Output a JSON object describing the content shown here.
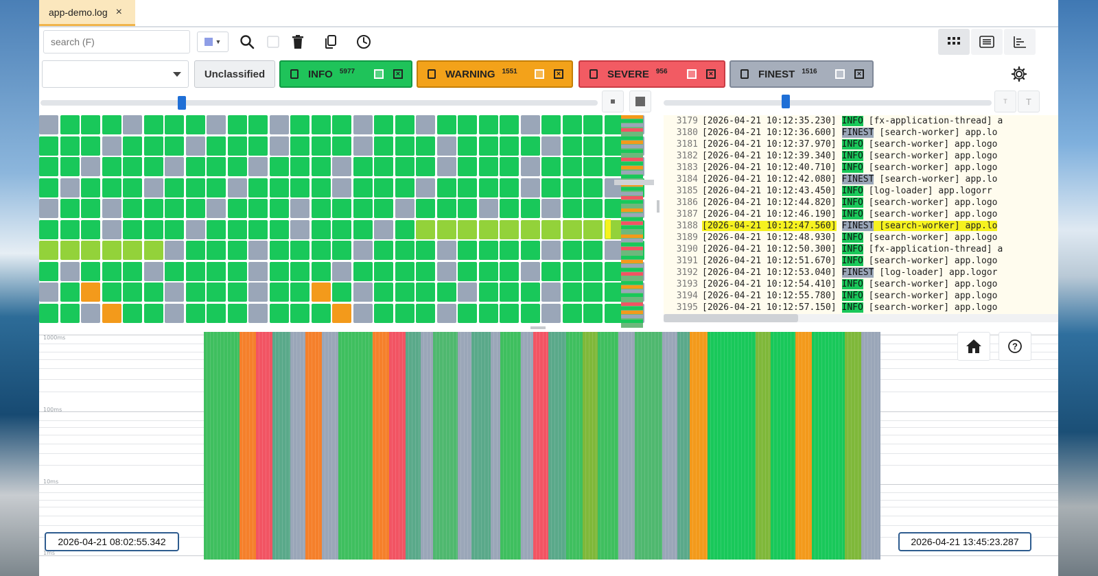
{
  "tab": {
    "title": "app-demo.log",
    "close": "×"
  },
  "toolbar": {
    "search_placeholder": "search (F)",
    "icons": [
      "search-icon",
      "square-icon",
      "trash-icon",
      "copy-icon",
      "clock-icon",
      "grid-view-icon",
      "list-view-icon",
      "chart-view-icon"
    ]
  },
  "filters": {
    "unclassified_label": "Unclassified",
    "chips": [
      {
        "label": "INFO",
        "count": "5977",
        "color": "#1fc35a",
        "border": "#119a45"
      },
      {
        "label": "WARNING",
        "count": "1551",
        "color": "#f3a21a",
        "border": "#c47f08"
      },
      {
        "label": "SEVERE",
        "count": "956",
        "color": "#f25b63",
        "border": "#c93b44"
      },
      {
        "label": "FINEST",
        "count": "1516",
        "color": "#a6aebb",
        "border": "#7f8898"
      }
    ]
  },
  "colors": {
    "info": "#19c85a",
    "finest": "#9aa6b8",
    "warning": "#f39a1b",
    "severe": "#f25463",
    "highlight": "#f6f21f",
    "accent": "#1f6fd6"
  },
  "log": {
    "lines": [
      {
        "num": "3179",
        "ts": "[2026-04-21 10:12:35.230]",
        "level": "INFO",
        "rest": " [fx-application-thread] a"
      },
      {
        "num": "3180",
        "ts": "[2026-04-21 10:12:36.600]",
        "level": "FINEST",
        "rest": " [search-worker] app.lo"
      },
      {
        "num": "3181",
        "ts": "[2026-04-21 10:12:37.970]",
        "level": "INFO",
        "rest": " [search-worker] app.logo"
      },
      {
        "num": "3182",
        "ts": "[2026-04-21 10:12:39.340]",
        "level": "INFO",
        "rest": " [search-worker] app.logo"
      },
      {
        "num": "3183",
        "ts": "[2026-04-21 10:12:40.710]",
        "level": "INFO",
        "rest": " [search-worker] app.logo"
      },
      {
        "num": "3184",
        "ts": "[2026-04-21 10:12:42.080]",
        "level": "FINEST",
        "rest": " [search-worker] app.lo"
      },
      {
        "num": "3185",
        "ts": "[2026-04-21 10:12:43.450]",
        "level": "INFO",
        "rest": " [log-loader] app.logorr"
      },
      {
        "num": "3186",
        "ts": "[2026-04-21 10:12:44.820]",
        "level": "INFO",
        "rest": " [search-worker] app.logo"
      },
      {
        "num": "3187",
        "ts": "[2026-04-21 10:12:46.190]",
        "level": "INFO",
        "rest": " [search-worker] app.logo"
      },
      {
        "num": "3188",
        "ts": "[2026-04-21 10:12:47.560]",
        "level": "FINEST",
        "rest": " [search-worker] app.lo",
        "highlight": true
      },
      {
        "num": "3189",
        "ts": "[2026-04-21 10:12:48.930]",
        "level": "INFO",
        "rest": " [search-worker] app.logo"
      },
      {
        "num": "3190",
        "ts": "[2026-04-21 10:12:50.300]",
        "level": "INFO",
        "rest": " [fx-application-thread] a"
      },
      {
        "num": "3191",
        "ts": "[2026-04-21 10:12:51.670]",
        "level": "INFO",
        "rest": " [search-worker] app.logo"
      },
      {
        "num": "3192",
        "ts": "[2026-04-21 10:12:53.040]",
        "level": "FINEST",
        "rest": " [log-loader] app.logor"
      },
      {
        "num": "3193",
        "ts": "[2026-04-21 10:12:54.410]",
        "level": "INFO",
        "rest": " [search-worker] app.logo"
      },
      {
        "num": "3194",
        "ts": "[2026-04-21 10:12:55.780]",
        "level": "INFO",
        "rest": " [search-worker] app.logo"
      },
      {
        "num": "3195",
        "ts": "[2026-04-21 10:12:57.150]",
        "level": "INFO",
        "rest": " [search-worker] app.logo"
      }
    ]
  },
  "grid": {
    "rows": [
      "FIIIFIIIFIIFIIIFIIFIIIIFIIIIF",
      "IIIFIIIFIIIFIIIFIIIFIIIIFIIIF",
      "IIFIIIFIIIFIIIFIIIIFIIIFIIIIF",
      "IFIIIFIIIFIIIIFIIIFIIIIFIIIFI",
      "FIIFIIIIFIIIFIIIIFIIIFIIFIIIF",
      "IIIFIIIFIIIIFIIIFIIIIIIIIIIII",
      "IIIIIIFIIIFIIIIFIIIFIIIIFIIFI",
      "IFIIIFIIIIFIIIFIIIIFIIIFIIIIF",
      "FIWIIIFIIIFIIWIFIIIIFIIIFIIIF",
      "IIFWIIFIIIFIIIWFIIIFIIIIFIIIF"
    ],
    "highlight_rows": [
      {
        "row": 5,
        "from": 18,
        "to": 27
      },
      {
        "row": 6,
        "from": 0,
        "to": 5
      }
    ],
    "minimap_colors": [
      "#f39a1b",
      "#19c85a",
      "#9aa6b8",
      "#f25463",
      "#6db87c",
      "#19c85a",
      "#f39a1b",
      "#9aa6b8",
      "#19c85a",
      "#6db87c",
      "#f25463",
      "#19c85a",
      "#f39a1b",
      "#9aa6b8",
      "#19c85a",
      "#6db87c",
      "#f39a1b",
      "#19c85a",
      "#9aa6b8",
      "#f25463",
      "#19c85a",
      "#6db87c",
      "#f39a1b",
      "#9aa6b8",
      "#19c85a",
      "#f25463",
      "#19c85a",
      "#6db87c",
      "#f39a1b",
      "#9aa6b8",
      "#19c85a",
      "#f25463",
      "#6db87c",
      "#19c85a",
      "#f39a1b",
      "#9aa6b8",
      "#19c85a",
      "#f25463",
      "#6db87c",
      "#19c85a",
      "#f39a1b",
      "#9aa6b8",
      "#19c85a",
      "#6db87c",
      "#f25463",
      "#19c85a",
      "#f39a1b",
      "#9aa6b8",
      "#19c85a",
      "#6db87c"
    ]
  },
  "timeline": {
    "y_labels": [
      "1000ms",
      "100ms",
      "10ms",
      "1ms"
    ],
    "start": "2026-04-21 08:02:55.342",
    "end": "2026-04-21 13:45:23.287",
    "stripes": [
      {
        "w": 52,
        "c": "#3fbf5f"
      },
      {
        "w": 24,
        "c": "#f5802b"
      },
      {
        "w": 24,
        "c": "#f25463"
      },
      {
        "w": 26,
        "c": "#5aa98a"
      },
      {
        "w": 22,
        "c": "#9aa6b8"
      },
      {
        "w": 24,
        "c": "#f5802b"
      },
      {
        "w": 24,
        "c": "#9aa6b8"
      },
      {
        "w": 50,
        "c": "#3fbf5f"
      },
      {
        "w": 24,
        "c": "#f5802b"
      },
      {
        "w": 24,
        "c": "#f25463"
      },
      {
        "w": 22,
        "c": "#5aa98a"
      },
      {
        "w": 18,
        "c": "#9aa6b8"
      },
      {
        "w": 36,
        "c": "#4fb86f"
      },
      {
        "w": 20,
        "c": "#9aa6b8"
      },
      {
        "w": 28,
        "c": "#5aa98a"
      },
      {
        "w": 14,
        "c": "#9aa6b8"
      },
      {
        "w": 30,
        "c": "#3fbf5f"
      },
      {
        "w": 18,
        "c": "#9aa6b8"
      },
      {
        "w": 22,
        "c": "#f25463"
      },
      {
        "w": 26,
        "c": "#5aa98a"
      },
      {
        "w": 24,
        "c": "#3fbf5f"
      },
      {
        "w": 22,
        "c": "#7fb83a"
      },
      {
        "w": 30,
        "c": "#3fbf5f"
      },
      {
        "w": 24,
        "c": "#9aa6b8"
      },
      {
        "w": 40,
        "c": "#4fb86f"
      },
      {
        "w": 22,
        "c": "#9aa6b8"
      },
      {
        "w": 18,
        "c": "#5aa98a"
      },
      {
        "w": 26,
        "c": "#f39a1b"
      },
      {
        "w": 70,
        "c": "#19c85a"
      },
      {
        "w": 22,
        "c": "#7fb83a"
      },
      {
        "w": 36,
        "c": "#19c85a"
      },
      {
        "w": 24,
        "c": "#f39a1b"
      },
      {
        "w": 48,
        "c": "#19c85a"
      },
      {
        "w": 24,
        "c": "#7fb83a"
      },
      {
        "w": 28,
        "c": "#9aa6b8"
      }
    ]
  }
}
